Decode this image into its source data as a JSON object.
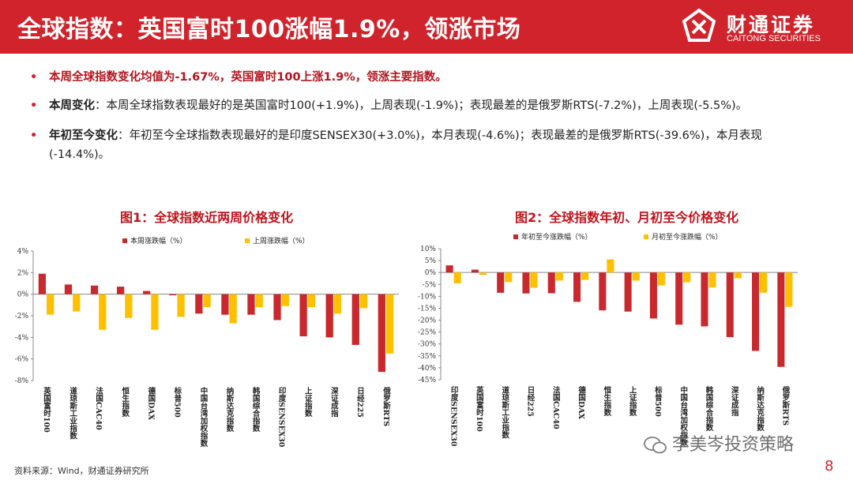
{
  "header": {
    "title": "全球指数：英国富时100涨幅1.9%，领涨市场",
    "logo_cn": "财通证券",
    "logo_en": "CAITONG SECURITIES"
  },
  "bullets": {
    "b1": "本周全球指数变化均值为-1.67%，英国富时100上涨1.9%，领涨主要指数。",
    "b2_label": "本周变化",
    "b2_text": "：本周全球指数表现最好的是英国富时100(+1.9%)，上周表现(-1.9%)；表现最差的是俄罗斯RTS(-7.2%)，上周表现(-5.5%)。",
    "b3_label": "年初至今变化",
    "b3_text": "：年初至今全球指数表现最好的是印度SENSEX30(+3.0%)，本月表现(-4.6%)；表现最差的是俄罗斯RTS(-39.6%)，本月表现(-14.4%)。"
  },
  "colors": {
    "series1": "#c9282d",
    "series2": "#ffc000",
    "brand": "#d0232b"
  },
  "chart_data": [
    {
      "type": "bar",
      "title": "图1：全球指数近两周价格变化",
      "categories": [
        "英国富时100",
        "道琼斯工业指数",
        "法国CAC40",
        "恒生指数",
        "德国DAX",
        "标普500",
        "中国台湾加权指数",
        "纳斯达克指数",
        "韩国综合指数",
        "印度SENSEX30",
        "上证指数",
        "深证成指",
        "日经225",
        "俄罗斯RTS"
      ],
      "series": [
        {
          "name": "本周涨跌幅（%）",
          "values": [
            1.9,
            0.9,
            0.8,
            0.7,
            0.3,
            -0.1,
            -1.8,
            -1.9,
            -1.9,
            -2.4,
            -3.9,
            -4.0,
            -4.7,
            -7.2
          ]
        },
        {
          "name": "上周涨跌幅（%）",
          "values": [
            -1.9,
            -1.6,
            -3.3,
            -2.2,
            -3.3,
            -2.1,
            -1.2,
            -2.7,
            -1.2,
            -1.1,
            -1.2,
            -1.8,
            -1.3,
            -5.5
          ]
        }
      ],
      "ylim": [
        -8,
        4
      ],
      "yticks": [
        "4%",
        "2%",
        "0%",
        "-2%",
        "-4%",
        "-6%",
        "-8%"
      ],
      "grid": false,
      "legend": "top"
    },
    {
      "type": "bar",
      "title": "图2：全球指数年初、月初至今价格变化",
      "categories": [
        "印度SENSEX30",
        "英国富时100",
        "道琼斯工业指数",
        "日经225",
        "法国CAC40",
        "德国DAX",
        "恒生指数",
        "上证指数",
        "标普500",
        "中国台湾加权指数",
        "韩国综合指数",
        "深证成指",
        "纳斯达克指数",
        "俄罗斯RTS"
      ],
      "series": [
        {
          "name": "年初至今涨跌幅（%）",
          "values": [
            3.0,
            1.2,
            -8.5,
            -8.8,
            -8.7,
            -12.3,
            -15.9,
            -16.4,
            -19.3,
            -21.9,
            -22.6,
            -27.1,
            -32.9,
            -39.6
          ]
        },
        {
          "name": "月初至今涨跌幅（%）",
          "values": [
            -4.6,
            -1.0,
            -4.0,
            -6.4,
            -3.4,
            -3.1,
            5.5,
            -3.4,
            -5.4,
            -4.1,
            -6.3,
            -2.4,
            -8.5,
            -14.4
          ]
        }
      ],
      "ylim": [
        -45,
        10
      ],
      "yticks": [
        "10%",
        "5%",
        "0%",
        "-5%",
        "-10%",
        "-15%",
        "-20%",
        "-25%",
        "-30%",
        "-35%",
        "-40%",
        "-45%"
      ],
      "grid": false,
      "legend": "top"
    }
  ],
  "footer": {
    "source": "资料来源：Wind，财通证券研究所",
    "page": "8",
    "watermark": "李美岑投资策略"
  }
}
